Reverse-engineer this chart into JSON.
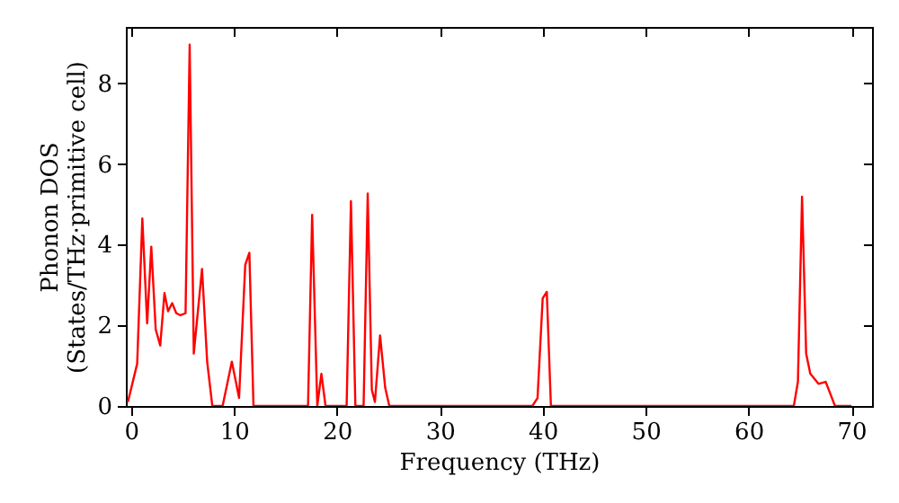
{
  "chart_data": {
    "type": "line",
    "xlabel": "Frequency (THz)",
    "ylabel": "Phonon DOS\n(States/THz·primitive cell)",
    "x": [
      -0.3,
      0.6,
      1.1,
      1.57,
      1.97,
      2.4,
      2.84,
      3.25,
      3.6,
      4.0,
      4.4,
      4.8,
      5.3,
      5.7,
      6.1,
      6.9,
      7.4,
      7.9,
      8.9,
      9.8,
      10.5,
      11.1,
      11.5,
      11.9,
      17.2,
      17.6,
      18.1,
      18.5,
      18.9,
      20.95,
      21.37,
      21.8,
      22.6,
      23.0,
      23.4,
      23.7,
      24.2,
      24.7,
      25.1,
      39.0,
      39.5,
      40.0,
      40.4,
      40.8,
      64.4,
      64.8,
      65.2,
      65.6,
      66.0,
      66.8,
      67.5,
      68.4,
      70.0
    ],
    "series": [
      {
        "color": "#ff0000",
        "values": [
          0.1,
          1.05,
          4.65,
          2.05,
          3.95,
          1.9,
          1.5,
          2.8,
          2.35,
          2.55,
          2.3,
          2.25,
          2.3,
          8.96,
          1.3,
          3.4,
          1.1,
          0,
          0,
          1.1,
          0.2,
          3.5,
          3.8,
          0,
          0,
          4.74,
          0,
          0.8,
          0,
          0,
          5.08,
          0,
          0,
          5.27,
          0.4,
          0.1,
          1.75,
          0.45,
          0,
          0,
          0.2,
          2.67,
          2.83,
          0,
          0,
          0.6,
          5.19,
          1.3,
          0.8,
          0.55,
          0.6,
          0,
          0
        ]
      }
    ],
    "xlim": [
      -0.5,
      72
    ],
    "ylim": [
      0,
      9.4
    ],
    "xticks": [
      0,
      10,
      20,
      30,
      40,
      50,
      60,
      70
    ],
    "yticks": [
      0,
      2,
      4,
      6,
      8
    ],
    "grid": false,
    "marker": "none",
    "line_style": "solid"
  }
}
